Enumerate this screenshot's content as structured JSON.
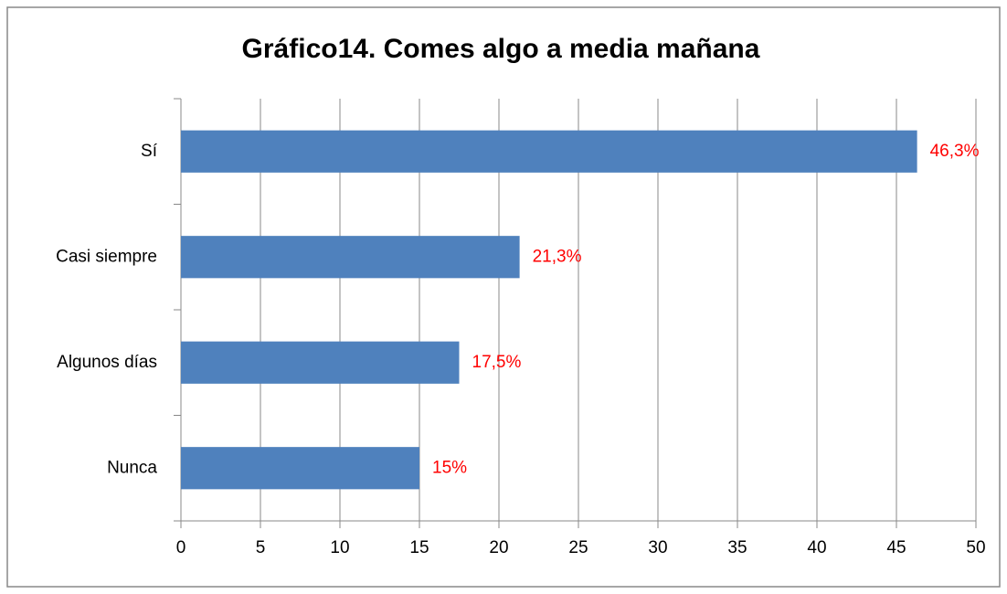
{
  "chart_data": {
    "type": "bar",
    "orientation": "horizontal",
    "title": "Gráfico14. Comes algo a media mañana",
    "categories": [
      "Sí",
      "Casi siempre",
      "Algunos días",
      "Nunca"
    ],
    "values": [
      46.3,
      21.3,
      17.5,
      15
    ],
    "value_labels": [
      "46,3%",
      "21,3%",
      "17,5%",
      "15%"
    ],
    "color": "#4f81bd",
    "label_color": "#ff0000",
    "xlim": [
      0,
      50
    ],
    "xticks": [
      0,
      5,
      10,
      15,
      20,
      25,
      30,
      35,
      40,
      45,
      50
    ],
    "grid": true
  }
}
